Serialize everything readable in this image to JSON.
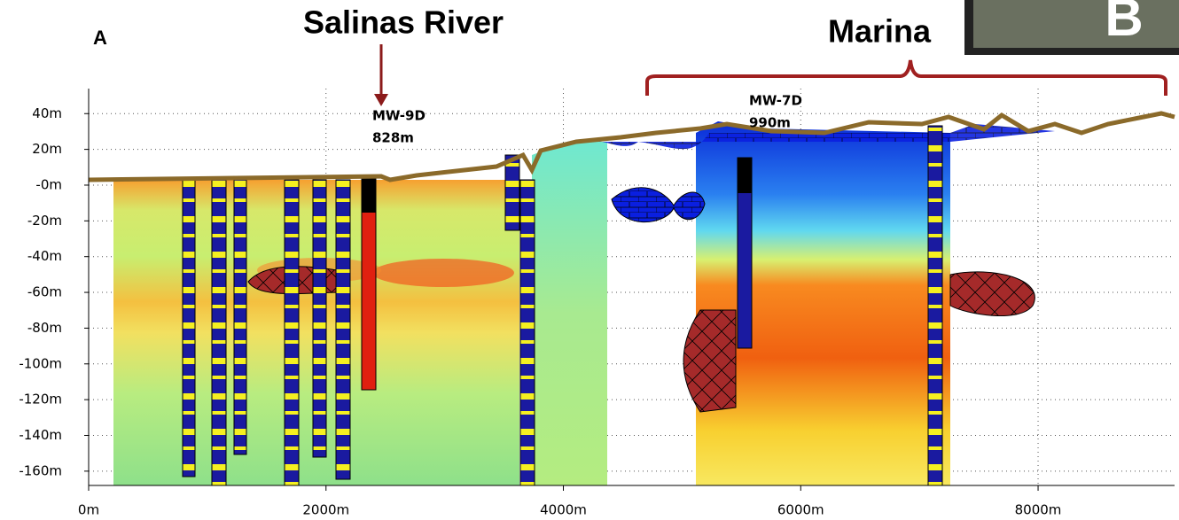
{
  "chart_data": {
    "type": "section",
    "panel_label": "A",
    "river_label": "Salinas River",
    "town_label": "Marina",
    "inset_label": "B",
    "wells": [
      {
        "name": "MW-9D",
        "label": "828m"
      },
      {
        "name": "MW-7D",
        "label": "990m"
      }
    ],
    "xlim": [
      0,
      9150
    ],
    "xticks": [
      {
        "value": 0,
        "label": "0m"
      },
      {
        "value": 2000,
        "label": "2000m"
      },
      {
        "value": 4000,
        "label": "4000m"
      },
      {
        "value": 6000,
        "label": "6000m"
      },
      {
        "value": 8000,
        "label": "8000m"
      }
    ],
    "ylim": [
      -168,
      54
    ],
    "yticks": [
      {
        "value": 40,
        "label": "40m"
      },
      {
        "value": 20,
        "label": "20m"
      },
      {
        "value": 0,
        "label": "-0m"
      },
      {
        "value": -20,
        "label": "-20m"
      },
      {
        "value": -40,
        "label": "-40m"
      },
      {
        "value": -60,
        "label": "-60m"
      },
      {
        "value": -80,
        "label": "-80m"
      },
      {
        "value": -100,
        "label": "-100m"
      },
      {
        "value": -120,
        "label": "-120m"
      },
      {
        "value": -140,
        "label": "-140m"
      },
      {
        "value": -160,
        "label": "-160m"
      }
    ],
    "grid": true
  }
}
